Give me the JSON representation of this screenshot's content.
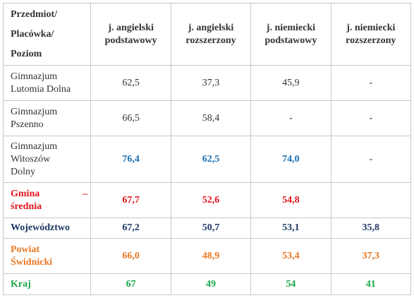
{
  "header": {
    "label_lines": [
      "Przedmiot/",
      "Placówka/",
      "Poziom"
    ],
    "columns": [
      [
        "j. angielski",
        "podstawowy"
      ],
      [
        "j. angielski",
        "rozszerzony"
      ],
      [
        "j. niemiecki",
        "podstawowy"
      ],
      [
        "j. niemiecki",
        "rozszerzony"
      ]
    ]
  },
  "rows": [
    {
      "label_lines": [
        "Gimnazjum",
        "Lutomia Dolna"
      ],
      "values": [
        "62,5",
        "37,3",
        "45,9",
        "-"
      ]
    },
    {
      "label_lines": [
        "Gimnazjum",
        "Pszenno"
      ],
      "values": [
        "66,5",
        "58,4",
        "-",
        "-"
      ]
    },
    {
      "label_lines": [
        "Gimnazjum",
        "Witoszów",
        "Dolny"
      ],
      "values": [
        "76,4",
        "62,5",
        "74,0",
        "-"
      ]
    },
    {
      "label_lines": [
        "Gmina",
        "–",
        "średnia"
      ],
      "values": [
        "67,7",
        "52,6",
        "54,8",
        ""
      ]
    },
    {
      "label_lines": [
        "Województwo"
      ],
      "values": [
        "67,2",
        "50,7",
        "53,1",
        "35,8"
      ]
    },
    {
      "label_lines": [
        "Powiat",
        "Świdnicki"
      ],
      "values": [
        "66,0",
        "48,9",
        "53,4",
        "37,3"
      ]
    },
    {
      "label_lines": [
        "Kraj"
      ],
      "values": [
        "67",
        "49",
        "54",
        "41"
      ]
    }
  ],
  "colors": {
    "school_highlight": "#1a6eb0",
    "gmina": "#e2141b",
    "wojewodztwo": "#1f3864",
    "powiat": "#e87722",
    "kraj": "#1aa84a"
  }
}
